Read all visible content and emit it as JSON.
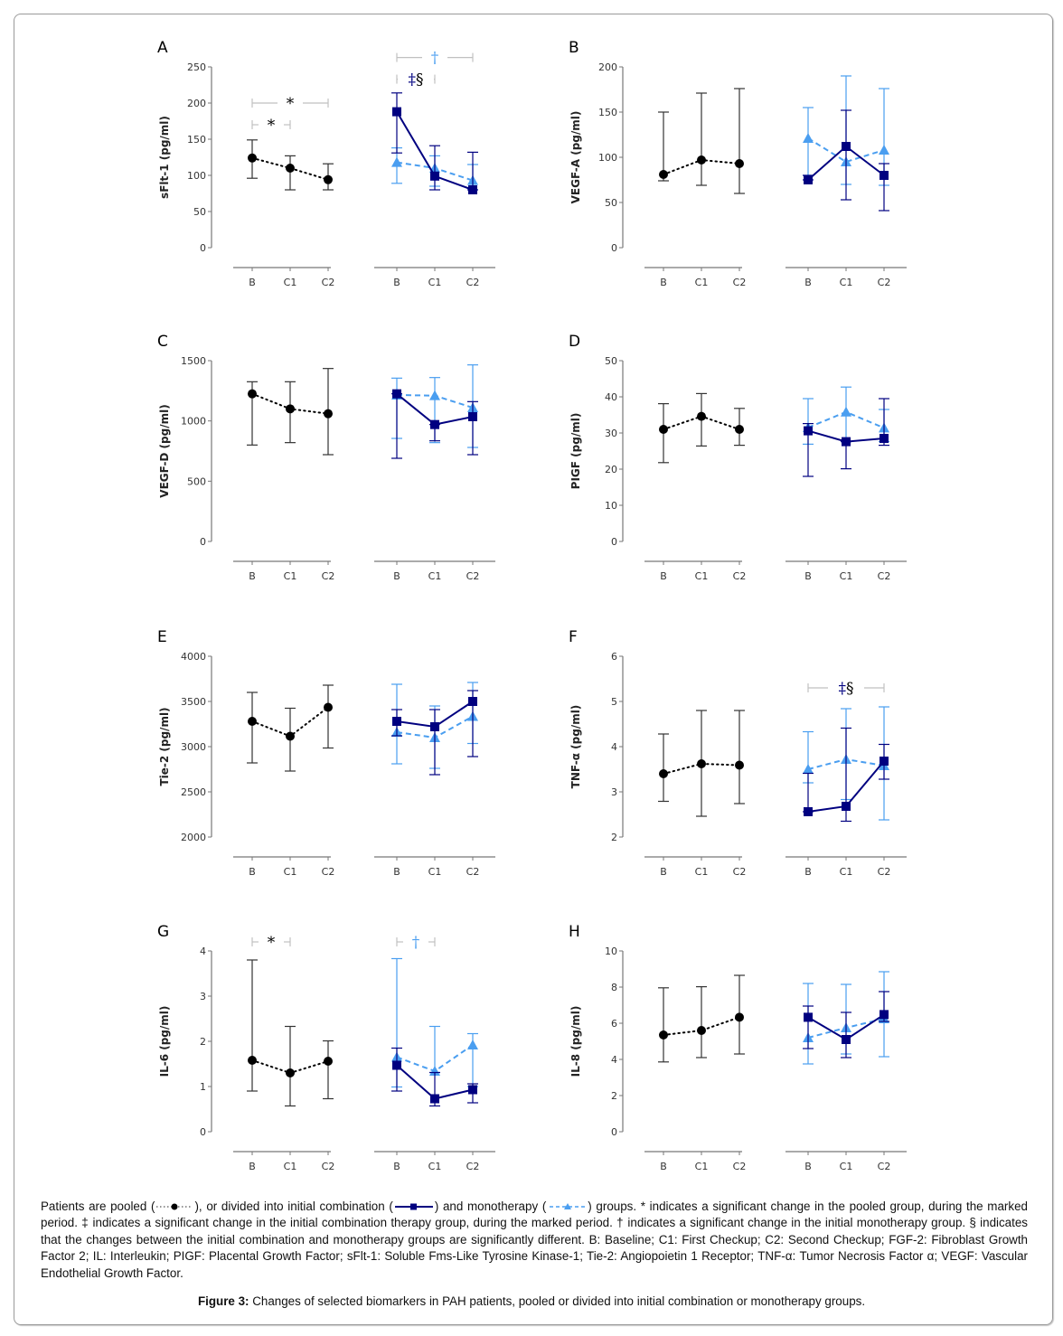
{
  "colors": {
    "pooled": "#000000",
    "combination": "#000080",
    "monotherapy": "#4a9ef0",
    "axis": "#777777",
    "bracket": "#c0c0c0"
  },
  "legend": {
    "pooled": {
      "marker": "circle",
      "line": "dotted"
    },
    "combination": {
      "marker": "square",
      "line": "solid"
    },
    "monotherapy": {
      "marker": "triangle",
      "line": "dashed"
    }
  },
  "caption": {
    "part1": "Patients are pooled (",
    "part2": "), or divided into initial combination (",
    "part3": ") and monotherapy (",
    "part4": ") groups. * indicates a significant change in the pooled group, during the marked period. ‡ indicates a significant change in the initial combination therapy group, during the marked period. † indicates a significant change in the initial monotherapy group. § indicates that the changes between the initial combination and monotherapy groups are significantly different. B: Baseline; C1: First Checkup; C2: Second Checkup; FGF-2: Fibroblast Growth Factor 2; IL: Interleukin; PIGF: Placental Growth Factor; sFlt-1: Soluble Fms-Like Tyrosine Kinase-1; Tie-2: Angiopoietin 1 Receptor; TNF-α: Tumor Necrosis Factor α; VEGF: Vascular Endothelial Growth Factor."
  },
  "figure_title": {
    "label": "Figure 3:",
    "text": " Changes of selected biomarkers in PAH patients, pooled or divided into initial combination or monotherapy groups."
  },
  "chart_data": [
    {
      "panel": "A",
      "type": "line",
      "ylabel": "sFlt-1 (pg/ml)",
      "ylim": [
        0,
        250
      ],
      "yticks": [
        0,
        50,
        100,
        150,
        200,
        250
      ],
      "categories": [
        "B",
        "C1",
        "C2"
      ],
      "series": [
        {
          "name": "pooled",
          "group": "left",
          "values": [
            124,
            110,
            94
          ],
          "err_low": [
            96,
            80,
            80
          ],
          "err_high": [
            149,
            127,
            116
          ]
        },
        {
          "name": "combination",
          "group": "right",
          "values": [
            188,
            99,
            80
          ],
          "err_low": [
            131,
            80,
            80
          ],
          "err_high": [
            214,
            141,
            132
          ]
        },
        {
          "name": "monotherapy",
          "group": "right",
          "values": [
            118,
            110,
            93
          ],
          "err_low": [
            89,
            85,
            80
          ],
          "err_high": [
            138,
            127,
            115
          ]
        }
      ],
      "annotations": [
        {
          "group": "left",
          "from": "B",
          "to": "C2",
          "symbol": "*",
          "color": "pooled",
          "level": 200
        },
        {
          "group": "left",
          "from": "B",
          "to": "C1",
          "symbol": "*",
          "color": "pooled",
          "level": 170
        },
        {
          "group": "right",
          "from": "B",
          "to": "C2",
          "symbol": "†",
          "color": "monotherapy",
          "level": 263
        },
        {
          "group": "right",
          "from": "B",
          "to": "C1",
          "symbol": "‡§",
          "color": "combination",
          "level": 233
        }
      ]
    },
    {
      "panel": "B",
      "type": "line",
      "ylabel": "VEGF-A (pg/ml)",
      "ylim": [
        0,
        200
      ],
      "yticks": [
        0,
        50,
        100,
        150,
        200
      ],
      "categories": [
        "B",
        "C1",
        "C2"
      ],
      "series": [
        {
          "name": "pooled",
          "group": "left",
          "values": [
            81,
            97,
            93
          ],
          "err_low": [
            74,
            69,
            60
          ],
          "err_high": [
            150,
            171,
            176
          ]
        },
        {
          "name": "combination",
          "group": "right",
          "values": [
            75,
            112,
            80
          ],
          "err_low": [
            75,
            53,
            41
          ],
          "err_high": [
            80,
            152,
            93
          ]
        },
        {
          "name": "monotherapy",
          "group": "right",
          "values": [
            121,
            95,
            108
          ],
          "err_low": [
            80,
            70,
            69
          ],
          "err_high": [
            155,
            190,
            176
          ]
        }
      ],
      "annotations": []
    },
    {
      "panel": "C",
      "type": "line",
      "ylabel": "VEGF-D (pg/ml)",
      "ylim": [
        0,
        1500
      ],
      "yticks": [
        0,
        500,
        1000,
        1500
      ],
      "categories": [
        "B",
        "C1",
        "C2"
      ],
      "series": [
        {
          "name": "pooled",
          "group": "left",
          "values": [
            1225,
            1100,
            1060
          ],
          "err_low": [
            800,
            820,
            720
          ],
          "err_high": [
            1325,
            1325,
            1435
          ]
        },
        {
          "name": "combination",
          "group": "right",
          "values": [
            1225,
            970,
            1035
          ],
          "err_low": [
            690,
            835,
            720
          ],
          "err_high": [
            1225,
            970,
            1160
          ]
        },
        {
          "name": "monotherapy",
          "group": "right",
          "values": [
            1215,
            1210,
            1110
          ],
          "err_low": [
            855,
            820,
            780
          ],
          "err_high": [
            1355,
            1360,
            1465
          ]
        }
      ],
      "annotations": []
    },
    {
      "panel": "D",
      "type": "line",
      "ylabel": "PIGF (pg/ml)",
      "ylim": [
        0,
        50
      ],
      "yticks": [
        0,
        10,
        20,
        30,
        40,
        50
      ],
      "categories": [
        "B",
        "C1",
        "C2"
      ],
      "series": [
        {
          "name": "pooled",
          "group": "left",
          "values": [
            31,
            34.6,
            31
          ],
          "err_low": [
            21.8,
            26.4,
            26.6
          ],
          "err_high": [
            38.1,
            40.9,
            36.8
          ]
        },
        {
          "name": "combination",
          "group": "right",
          "values": [
            30.6,
            27.6,
            28.5
          ],
          "err_low": [
            18.0,
            20.1,
            26.6
          ],
          "err_high": [
            32.6,
            27.6,
            39.5
          ]
        },
        {
          "name": "monotherapy",
          "group": "right",
          "values": [
            31.5,
            35.8,
            31.4
          ],
          "err_low": [
            26.9,
            27.6,
            27.6
          ],
          "err_high": [
            39.5,
            42.7,
            36.5
          ]
        }
      ],
      "annotations": []
    },
    {
      "panel": "E",
      "type": "line",
      "ylabel": "Tie-2 (pg/ml)",
      "ylim": [
        2000,
        4000
      ],
      "yticks": [
        2000,
        2500,
        3000,
        3500,
        4000
      ],
      "categories": [
        "B",
        "C1",
        "C2"
      ],
      "series": [
        {
          "name": "pooled",
          "group": "left",
          "values": [
            3280,
            3115,
            3435
          ],
          "err_low": [
            2820,
            2730,
            2985
          ],
          "err_high": [
            3600,
            3425,
            3680
          ]
        },
        {
          "name": "combination",
          "group": "right",
          "values": [
            3280,
            3220,
            3500
          ],
          "err_low": [
            3120,
            2690,
            2890
          ],
          "err_high": [
            3410,
            3410,
            3620
          ]
        },
        {
          "name": "monotherapy",
          "group": "right",
          "values": [
            3160,
            3100,
            3335
          ],
          "err_low": [
            2810,
            2760,
            3035
          ],
          "err_high": [
            3690,
            3450,
            3710
          ]
        }
      ],
      "annotations": []
    },
    {
      "panel": "F",
      "type": "line",
      "ylabel": "TNF-α (pg/ml)",
      "ylim": [
        2,
        6
      ],
      "yticks": [
        2,
        3,
        4,
        5,
        6
      ],
      "categories": [
        "B",
        "C1",
        "C2"
      ],
      "series": [
        {
          "name": "pooled",
          "group": "left",
          "values": [
            3.4,
            3.62,
            3.59
          ],
          "err_low": [
            2.79,
            2.46,
            2.74
          ],
          "err_high": [
            4.28,
            4.8,
            4.8
          ]
        },
        {
          "name": "combination",
          "group": "right",
          "values": [
            2.56,
            2.68,
            3.68
          ],
          "err_low": [
            2.56,
            2.35,
            3.28
          ],
          "err_high": [
            3.41,
            4.41,
            4.05
          ]
        },
        {
          "name": "monotherapy",
          "group": "right",
          "values": [
            3.5,
            3.72,
            3.58
          ],
          "err_low": [
            3.2,
            2.83,
            2.38
          ],
          "err_high": [
            4.33,
            4.84,
            4.88
          ]
        }
      ],
      "annotations": [
        {
          "group": "right",
          "from": "B",
          "to": "C2",
          "symbol": "‡§",
          "color": "combination",
          "level": 5.3
        }
      ]
    },
    {
      "panel": "G",
      "type": "line",
      "ylabel": "IL-6 (pg/ml)",
      "ylim": [
        0,
        4
      ],
      "yticks": [
        0,
        1,
        2,
        3,
        4
      ],
      "categories": [
        "B",
        "C1",
        "C2"
      ],
      "series": [
        {
          "name": "pooled",
          "group": "left",
          "values": [
            1.58,
            1.3,
            1.56
          ],
          "err_low": [
            0.9,
            0.57,
            0.73
          ],
          "err_high": [
            3.8,
            2.33,
            2.01
          ]
        },
        {
          "name": "combination",
          "group": "right",
          "values": [
            1.47,
            0.73,
            0.93
          ],
          "err_low": [
            0.9,
            0.57,
            0.64
          ],
          "err_high": [
            1.85,
            1.31,
            1.06
          ]
        },
        {
          "name": "monotherapy",
          "group": "right",
          "values": [
            1.65,
            1.34,
            1.92
          ],
          "err_low": [
            0.99,
            1.31,
            1.0
          ],
          "err_high": [
            3.83,
            2.33,
            2.17
          ]
        }
      ],
      "annotations": [
        {
          "group": "left",
          "from": "B",
          "to": "C1",
          "symbol": "*",
          "color": "pooled",
          "level": 4.2
        },
        {
          "group": "right",
          "from": "B",
          "to": "C1",
          "symbol": "†",
          "color": "monotherapy",
          "level": 4.2
        }
      ]
    },
    {
      "panel": "H",
      "type": "line",
      "ylabel": "IL-8 (pg/ml)",
      "ylim": [
        0,
        10
      ],
      "yticks": [
        0,
        2,
        4,
        6,
        8,
        10
      ],
      "categories": [
        "B",
        "C1",
        "C2"
      ],
      "series": [
        {
          "name": "pooled",
          "group": "left",
          "values": [
            5.35,
            5.6,
            6.33
          ],
          "err_low": [
            3.86,
            4.1,
            4.3
          ],
          "err_high": [
            7.96,
            8.02,
            8.65
          ]
        },
        {
          "name": "combination",
          "group": "right",
          "values": [
            6.33,
            5.1,
            6.48
          ],
          "err_low": [
            4.6,
            4.1,
            6.1
          ],
          "err_high": [
            6.95,
            6.6,
            7.75
          ]
        },
        {
          "name": "monotherapy",
          "group": "right",
          "values": [
            5.2,
            5.75,
            6.25
          ],
          "err_low": [
            3.75,
            4.3,
            4.15
          ],
          "err_high": [
            8.2,
            8.15,
            8.85
          ]
        }
      ],
      "annotations": []
    }
  ]
}
